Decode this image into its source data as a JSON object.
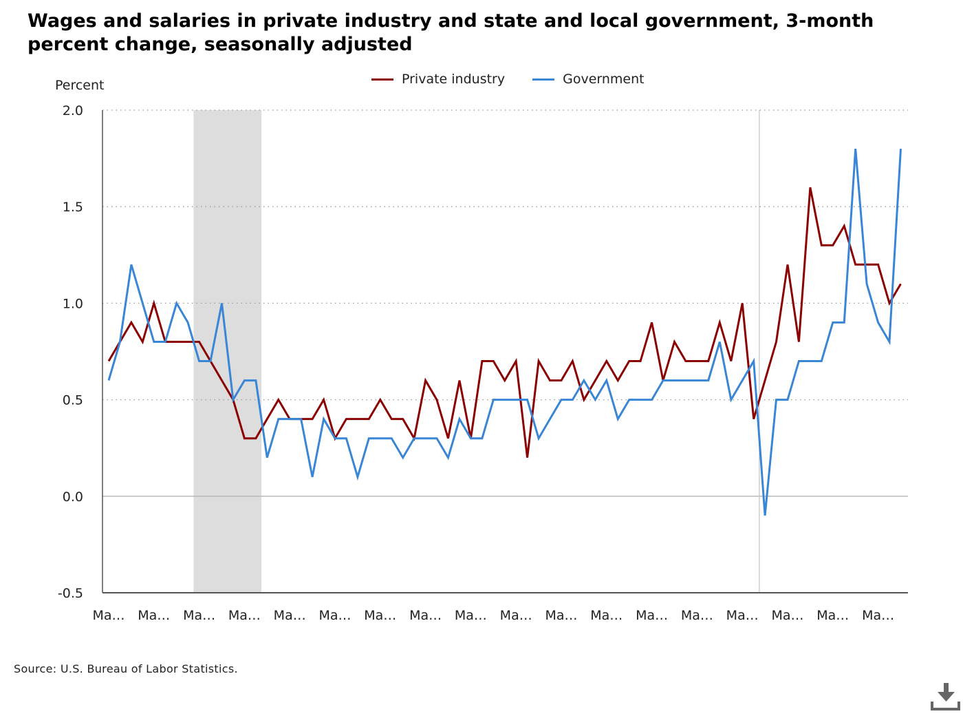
{
  "chart_data": {
    "type": "line",
    "title": "Wages and salaries in private industry and state and local government, 3-month percent change, seasonally adjusted",
    "ylabel": "Percent",
    "xlabel": "",
    "ylim": [
      -0.5,
      2.0
    ],
    "yticks": [
      "2.0",
      "1.5",
      "1.0",
      "0.5",
      "0.0",
      "-0.5"
    ],
    "xtick_labels": [
      "Ma…",
      "Ma…",
      "Ma…",
      "Ma…",
      "Ma…",
      "Ma…",
      "Ma…",
      "Ma…",
      "Ma…",
      "Ma…",
      "Ma…",
      "Ma…",
      "Ma…",
      "Ma…",
      "Ma…",
      "Ma…",
      "Ma…",
      "Ma…"
    ],
    "grid": "horizontal dotted",
    "legend_position": "top-center",
    "shaded_period": {
      "start_index": 7,
      "end_index": 13
    },
    "reference_line_index": 57,
    "series": [
      {
        "name": "Private industry",
        "color": "#8b0000",
        "values": [
          0.7,
          0.8,
          0.9,
          0.8,
          1.0,
          0.8,
          0.8,
          0.8,
          0.8,
          0.7,
          0.6,
          0.5,
          0.3,
          0.3,
          0.4,
          0.5,
          0.4,
          0.4,
          0.4,
          0.5,
          0.3,
          0.4,
          0.4,
          0.4,
          0.5,
          0.4,
          0.4,
          0.3,
          0.6,
          0.5,
          0.3,
          0.6,
          0.3,
          0.7,
          0.7,
          0.6,
          0.7,
          0.2,
          0.7,
          0.6,
          0.6,
          0.7,
          0.5,
          0.6,
          0.7,
          0.6,
          0.7,
          0.7,
          0.9,
          0.6,
          0.8,
          0.7,
          0.7,
          0.7,
          0.9,
          0.7,
          1.0,
          0.4,
          0.6,
          0.8,
          1.2,
          0.8,
          1.6,
          1.3,
          1.3,
          1.4,
          1.2,
          1.2,
          1.2,
          1.0,
          1.1
        ]
      },
      {
        "name": "Government",
        "color": "#3a86d6",
        "values": [
          0.6,
          0.8,
          1.2,
          1.0,
          0.8,
          0.8,
          1.0,
          0.9,
          0.7,
          0.7,
          1.0,
          0.5,
          0.6,
          0.6,
          0.2,
          0.4,
          0.4,
          0.4,
          0.1,
          0.4,
          0.3,
          0.3,
          0.1,
          0.3,
          0.3,
          0.3,
          0.2,
          0.3,
          0.3,
          0.3,
          0.2,
          0.4,
          0.3,
          0.3,
          0.5,
          0.5,
          0.5,
          0.5,
          0.3,
          0.4,
          0.5,
          0.5,
          0.6,
          0.5,
          0.6,
          0.4,
          0.5,
          0.5,
          0.5,
          0.6,
          0.6,
          0.6,
          0.6,
          0.6,
          0.8,
          0.5,
          0.6,
          0.7,
          -0.1,
          0.5,
          0.5,
          0.7,
          0.7,
          0.7,
          0.9,
          0.9,
          1.8,
          1.1,
          0.9,
          0.8,
          1.8
        ]
      }
    ]
  },
  "source": "Source: U.S. Bureau of Labor Statistics.",
  "download_icon": "download-icon"
}
